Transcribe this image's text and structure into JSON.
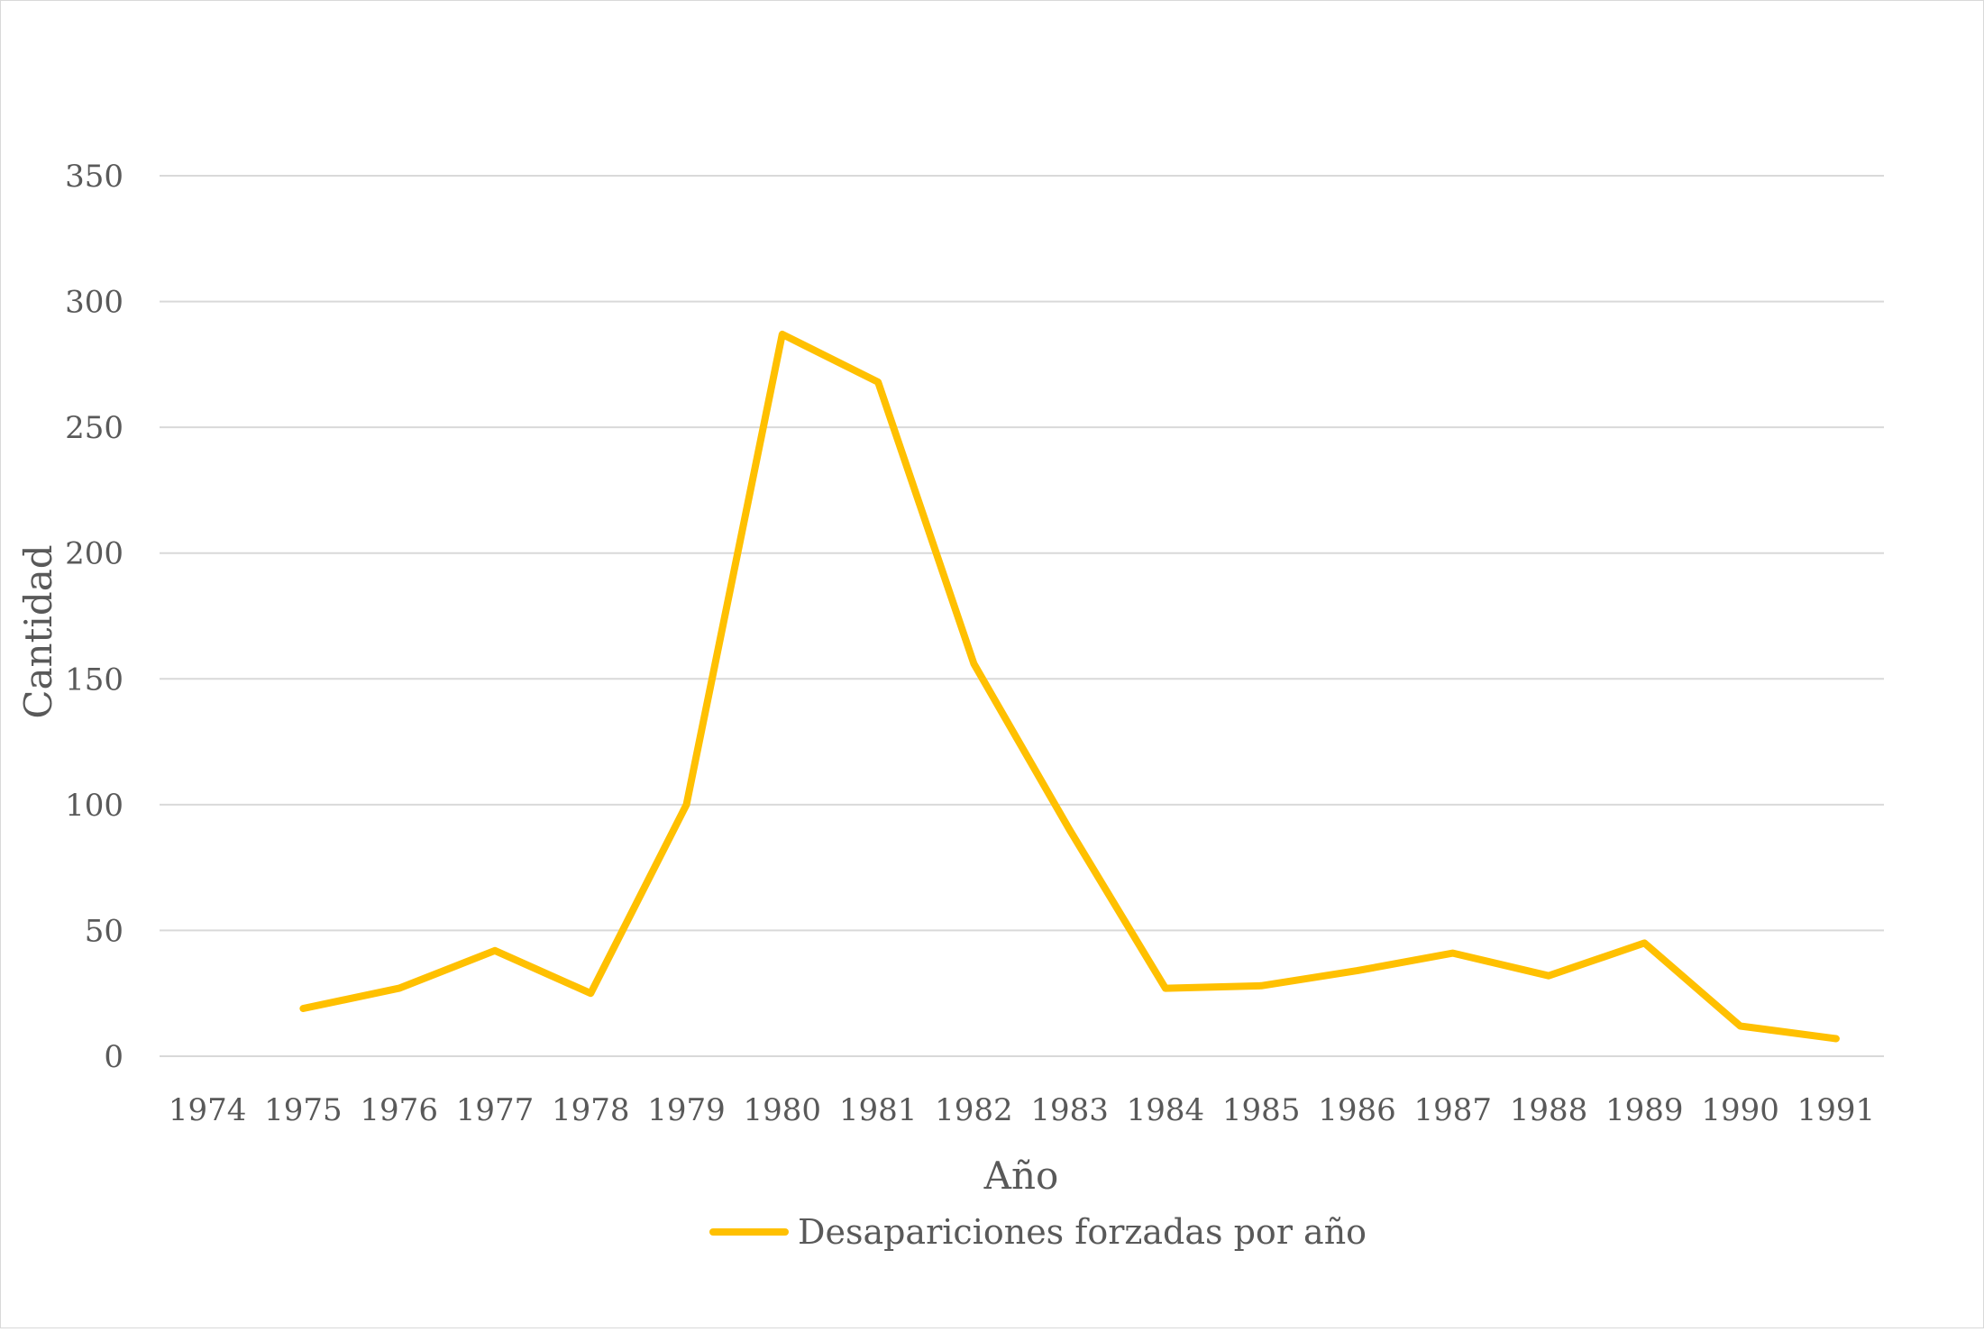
{
  "chart_data": {
    "type": "line",
    "title": "",
    "xlabel": "Año",
    "ylabel": "Cantidad",
    "ylim": [
      0,
      350
    ],
    "yticks": [
      0,
      50,
      100,
      150,
      200,
      250,
      300,
      350
    ],
    "grid": true,
    "legend_position": "bottom",
    "categories": [
      "1974",
      "1975",
      "1976",
      "1977",
      "1978",
      "1979",
      "1980",
      "1981",
      "1982",
      "1983",
      "1984",
      "1985",
      "1986",
      "1987",
      "1988",
      "1989",
      "1990",
      "1991"
    ],
    "series": [
      {
        "name": "Desapariciones forzadas por año",
        "color": "#FFC000",
        "values": [
          null,
          19,
          27,
          42,
          25,
          100,
          287,
          268,
          156,
          90,
          27,
          28,
          34,
          41,
          32,
          45,
          12,
          7
        ]
      }
    ]
  },
  "colors": {
    "series": "#FFC000",
    "grid": "#d9d9d9",
    "text": "#595959"
  }
}
